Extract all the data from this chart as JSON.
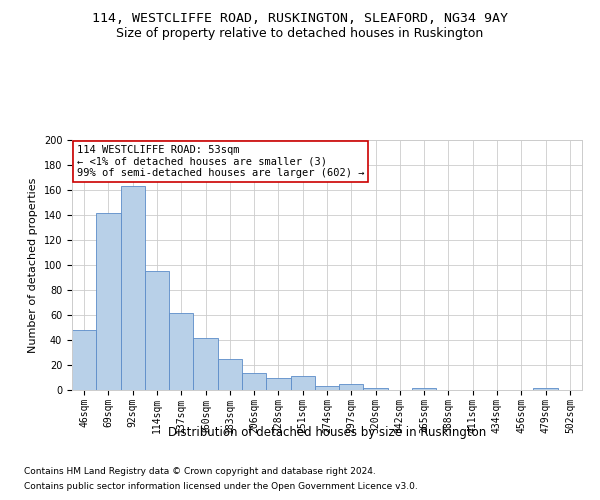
{
  "title1": "114, WESTCLIFFE ROAD, RUSKINGTON, SLEAFORD, NG34 9AY",
  "title2": "Size of property relative to detached houses in Ruskington",
  "xlabel": "Distribution of detached houses by size in Ruskington",
  "ylabel": "Number of detached properties",
  "bar_labels": [
    "46sqm",
    "69sqm",
    "92sqm",
    "114sqm",
    "137sqm",
    "160sqm",
    "183sqm",
    "206sqm",
    "228sqm",
    "251sqm",
    "274sqm",
    "297sqm",
    "320sqm",
    "342sqm",
    "365sqm",
    "388sqm",
    "411sqm",
    "434sqm",
    "456sqm",
    "479sqm",
    "502sqm"
  ],
  "bar_values": [
    48,
    142,
    163,
    95,
    62,
    42,
    25,
    14,
    10,
    11,
    3,
    5,
    2,
    0,
    2,
    0,
    0,
    0,
    0,
    2,
    0
  ],
  "bar_color": "#b8d0e8",
  "bar_edge_color": "#5b8cc8",
  "ylim": [
    0,
    200
  ],
  "yticks": [
    0,
    20,
    40,
    60,
    80,
    100,
    120,
    140,
    160,
    180,
    200
  ],
  "annotation_text": "114 WESTCLIFFE ROAD: 53sqm\n← <1% of detached houses are smaller (3)\n99% of semi-detached houses are larger (602) →",
  "box_color": "#cc0000",
  "grid_color": "#cccccc",
  "footnote1": "Contains HM Land Registry data © Crown copyright and database right 2024.",
  "footnote2": "Contains public sector information licensed under the Open Government Licence v3.0.",
  "title1_fontsize": 9.5,
  "title2_fontsize": 9,
  "axis_label_fontsize": 8.5,
  "tick_fontsize": 7,
  "annotation_fontsize": 7.5,
  "footnote_fontsize": 6.5,
  "ylabel_fontsize": 8
}
